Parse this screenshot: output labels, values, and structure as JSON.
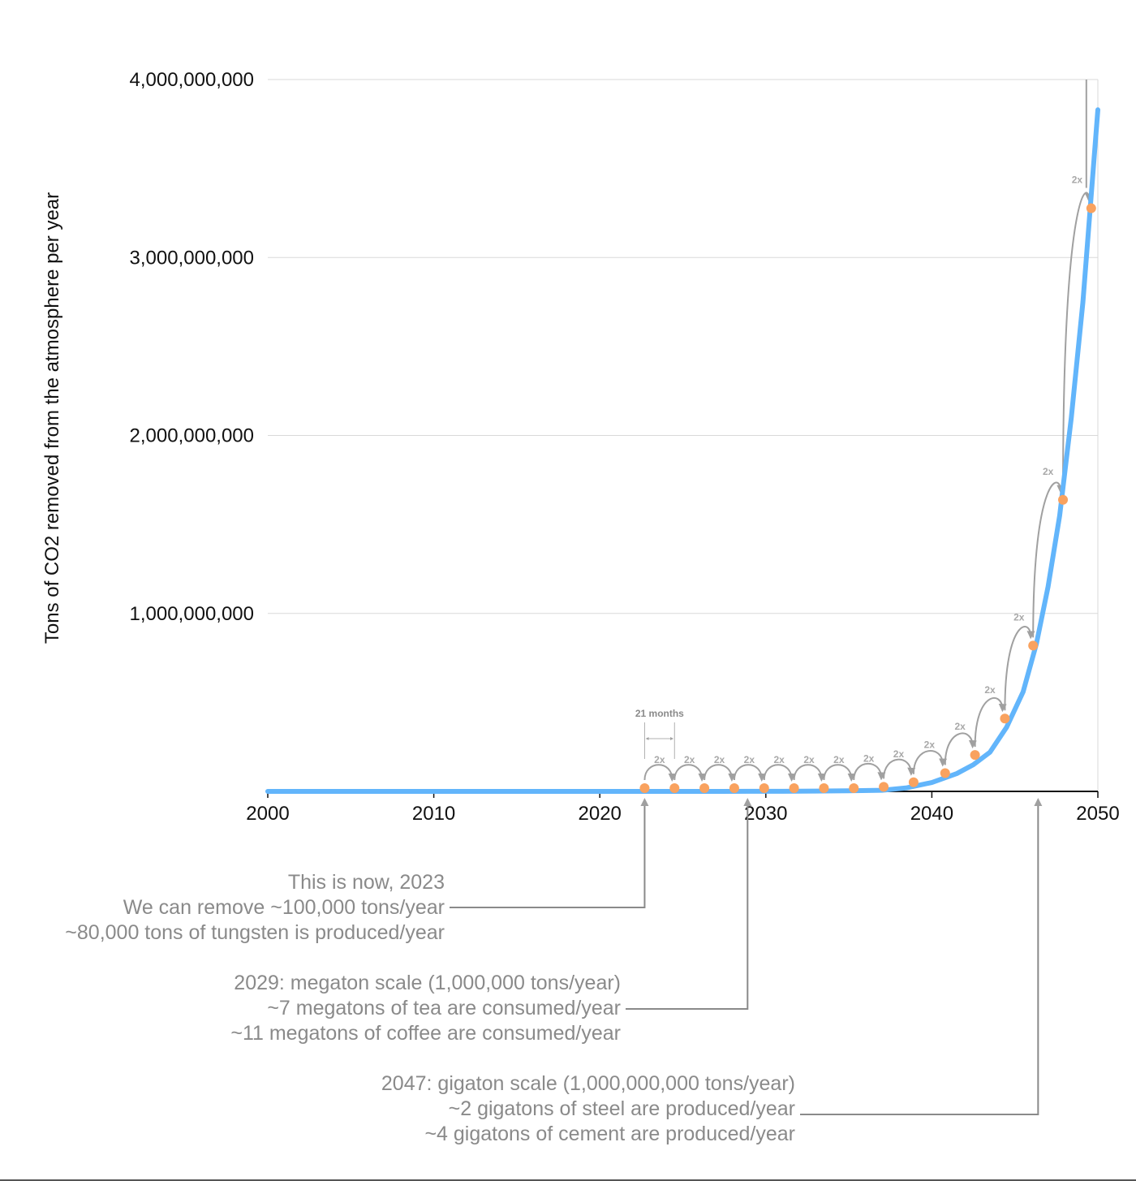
{
  "chart_data": {
    "type": "line",
    "ylabel": "Tons of CO2 removed from the atmosphere per year",
    "xlabel": "",
    "xlim": [
      2000,
      2050
    ],
    "ylim": [
      0,
      4000000000
    ],
    "x_ticks": [
      2000,
      2010,
      2020,
      2030,
      2040,
      2050
    ],
    "x_tick_labels": [
      "2000",
      "2010",
      "2020",
      "2030",
      "2040",
      "2050"
    ],
    "y_ticks": [
      1000000000,
      2000000000,
      3000000000,
      4000000000
    ],
    "y_tick_labels": [
      "1,000,000,000",
      "2,000,000,000",
      "3,000,000,000",
      "4,000,000,000"
    ],
    "grid": "horizontal",
    "colors": {
      "line": "#62b5fb",
      "marker": "#f9a25f",
      "arrows": "#a0a0a0",
      "annotation_text": "#8a8a8a",
      "axis": "#111111",
      "grid": "#d9d9d9"
    },
    "series": [
      {
        "x": [
          2000,
          2023,
          2025,
          2027,
          2029,
          2031,
          2033,
          2035,
          2037,
          2038.5,
          2040,
          2041.5,
          2042.5,
          2043.5,
          2044.5,
          2045.5,
          2046.3,
          2047,
          2047.7,
          2048.4,
          2049.1,
          2050
        ],
        "y": [
          1e-05,
          5e-05,
          0.0001,
          0.0002,
          0.0004,
          0.0008,
          0.0016,
          0.0032,
          0.0064,
          0.02,
          0.05,
          0.1,
          0.15,
          0.22,
          0.36,
          0.56,
          0.83,
          1.15,
          1.55,
          2.1,
          2.75,
          3.83
        ],
        "y_multiplier": 1000000000
      }
    ],
    "doubling_points": {
      "x": [
        2022.7,
        2024.5,
        2026.3,
        2028.1,
        2029.9,
        2031.7,
        2033.5,
        2035.3,
        2037.1,
        2038.9,
        2040.8,
        2042.6,
        2044.4,
        2046.1,
        2047.9,
        2049.6
      ],
      "y": [
        0.0001,
        0.0002,
        0.0004,
        0.0008,
        0.0016,
        0.0032,
        0.0064,
        0.0128,
        0.0256,
        0.0512,
        0.1024,
        0.2048,
        0.4096,
        0.8192,
        1.6384,
        3.2768
      ],
      "y_multiplier": 1000000000,
      "hop_label": "2x"
    },
    "interval_label": "21 months",
    "annotations": [
      {
        "lines": [
          "This is now, 2023",
          "We can remove ~100,000 tons/year",
          "~80,000 tons of tungsten is produced/year"
        ],
        "year": 2022.7
      },
      {
        "lines": [
          "2029: megaton scale (1,000,000 tons/year)",
          "~7 megatons of tea are consumed/year",
          "~11 megatons of coffee are consumed/year"
        ],
        "year": 2028.9
      },
      {
        "lines": [
          "2047: gigaton scale (1,000,000,000 tons/year)",
          "~2 gigatons of steel are produced/year",
          "~4 gigatons of cement are produced/year"
        ],
        "year": 2046.4
      }
    ]
  }
}
